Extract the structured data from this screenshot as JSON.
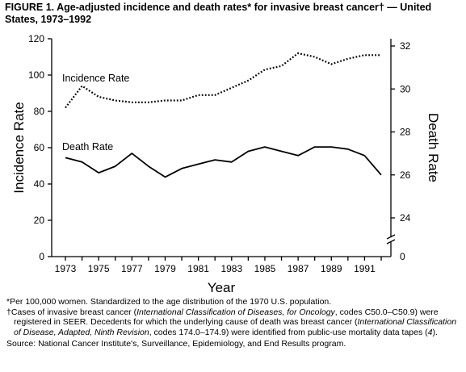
{
  "header": {
    "title": "FIGURE 1. Age-adjusted incidence and death rates* for invasive breast cancer† — United States, 1973–1992"
  },
  "chart_data": {
    "type": "line",
    "title": "FIGURE 1. Age-adjusted incidence and death rates* for invasive breast cancer† — United States, 1973–1992",
    "xlabel": "Year",
    "ylabel_left": "Incidence Rate",
    "ylabel_right": "Death Rate",
    "x": [
      1973,
      1974,
      1975,
      1976,
      1977,
      1978,
      1979,
      1980,
      1981,
      1982,
      1983,
      1984,
      1985,
      1986,
      1987,
      1988,
      1989,
      1990,
      1991,
      1992
    ],
    "x_ticks": [
      "1973",
      "1975",
      "1977",
      "1979",
      "1981",
      "1983",
      "1985",
      "1987",
      "1989",
      "1991"
    ],
    "y_left_ticks": [
      "0",
      "20",
      "40",
      "60",
      "80",
      "100",
      "120"
    ],
    "y_right_ticks": [
      "0",
      "24",
      "26",
      "28",
      "30",
      "32"
    ],
    "ylim_left": [
      0,
      120
    ],
    "ylim_right_broken": [
      23,
      32
    ],
    "series": [
      {
        "name": "Incidence Rate",
        "axis": "left",
        "style": "dotted",
        "values": [
          82,
          94,
          88,
          86,
          85,
          85,
          86,
          86,
          89,
          89,
          93,
          97,
          103,
          105,
          112,
          110,
          106,
          109,
          111,
          111
        ]
      },
      {
        "name": "Death Rate",
        "axis": "right",
        "style": "solid",
        "values": [
          26.8,
          26.6,
          26.1,
          26.4,
          27.0,
          26.4,
          25.9,
          26.3,
          26.5,
          26.7,
          26.6,
          27.1,
          27.3,
          27.1,
          26.9,
          27.3,
          27.3,
          27.2,
          26.9,
          26.0
        ]
      }
    ],
    "grid": false,
    "legend": "inline labels"
  },
  "footnotes": {
    "star": "*Per 100,000 women. Standardized to the age distribution of the 1970 U.S. population.",
    "dagger_a": "†Cases of invasive breast cancer (",
    "dagger_icd": "International Classification of Diseases, for Oncology",
    "dagger_b": ", codes C50.0–C50.9) were registered in SEER. Decedents for which the underlying cause of death was breast cancer (",
    "dagger_icda": "International Classification of Disease, Adapted, Ninth Revision",
    "dagger_c": ", codes 174.0–174.9) were identified from public-use mortality data tapes (",
    "dagger_ref": "4",
    "dagger_d": ").",
    "source": "Source: National Cancer Institute's, Surveillance, Epidemiology, and End Results program."
  }
}
